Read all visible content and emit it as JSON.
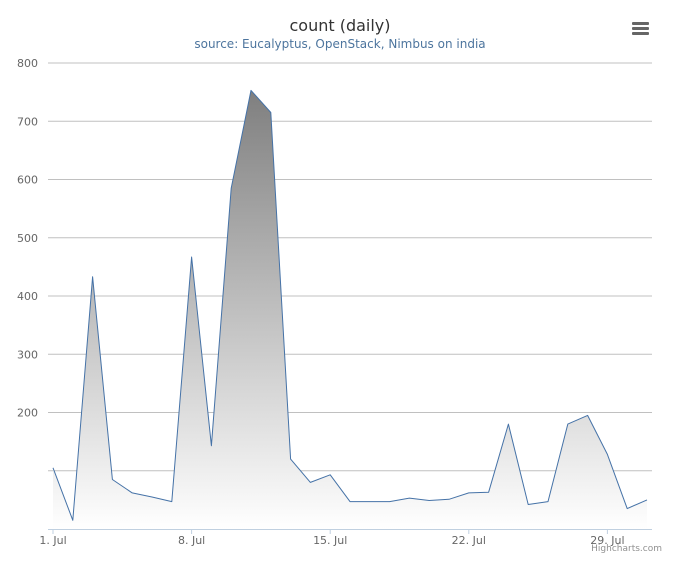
{
  "chart_data": {
    "type": "area",
    "title": "count (daily)",
    "subtitle": "source: Eucalyptus, OpenStack, Nimbus on india",
    "x_label": "",
    "y_label": "",
    "x_tick_labels": [
      "1. Jul",
      "8. Jul",
      "15. Jul",
      "22. Jul",
      "29. Jul"
    ],
    "x_tick_days": [
      1,
      8,
      15,
      22,
      29
    ],
    "x_range_days": [
      1,
      31
    ],
    "y_ticks": [
      200,
      300,
      400,
      500,
      600,
      700,
      800
    ],
    "ylim": [
      0,
      800
    ],
    "grid": true,
    "legend": "none",
    "series": [
      {
        "day": [
          1,
          2,
          3,
          4,
          5,
          6,
          7,
          8,
          9,
          10,
          11,
          12,
          13,
          14,
          15,
          16,
          17,
          18,
          19,
          20,
          21,
          22,
          23,
          24,
          25,
          26,
          27,
          28,
          29,
          30,
          31
        ],
        "values": [
          105,
          15,
          433,
          85,
          62,
          55,
          47,
          467,
          143,
          585,
          753,
          715,
          120,
          80,
          93,
          47,
          47,
          47,
          53,
          49,
          51,
          62,
          63,
          180,
          42,
          47,
          180,
          195,
          128,
          35,
          50
        ]
      }
    ],
    "colors": {
      "line": "#4572a7",
      "fill_top": "#7f7f7f",
      "fill_bottom": "#ffffff",
      "grid": "#c0c0c0",
      "axis": "#c0d0e0",
      "labels": "#666666"
    }
  },
  "ui": {
    "menu_icon": "hamburger-menu-icon",
    "credits": "Highcharts.com"
  }
}
